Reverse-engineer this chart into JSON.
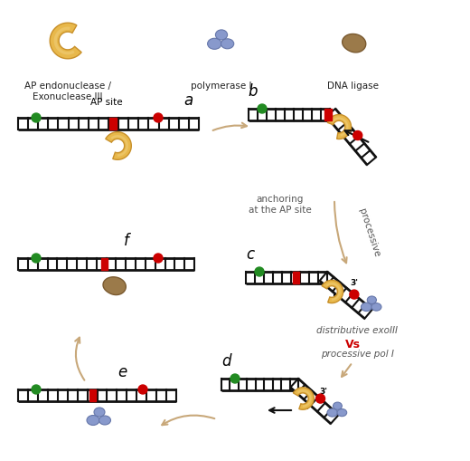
{
  "bg_color": "#ffffff",
  "tan_color": "#c8a87a",
  "black_color": "#111111",
  "red_color": "#cc0000",
  "green_color": "#228B22",
  "enzyme_fill": "#e8b84b",
  "enzyme_edge": "#c8902a",
  "enzyme_fill2": "#f0d080",
  "poly_fill": "#8899cc",
  "poly_edge": "#6677aa",
  "ligase_fill": "#9b7a4a",
  "ligase_edge": "#7a5a30",
  "legend_ape": "AP endonuclease /\nExonuclease III",
  "legend_pol": "polymerase I",
  "legend_lig": "DNA ligase",
  "ap_site_label": "AP site",
  "label_a": "a",
  "label_b": "b",
  "label_c": "c",
  "label_d": "d",
  "label_e": "e",
  "label_f": "f",
  "text_anchoring": "anchoring\nat the AP site",
  "text_processive": "processive",
  "text_dist_exo": "distributive exoIII",
  "text_vs": "Vs",
  "text_proc_pol": "processive pol I"
}
